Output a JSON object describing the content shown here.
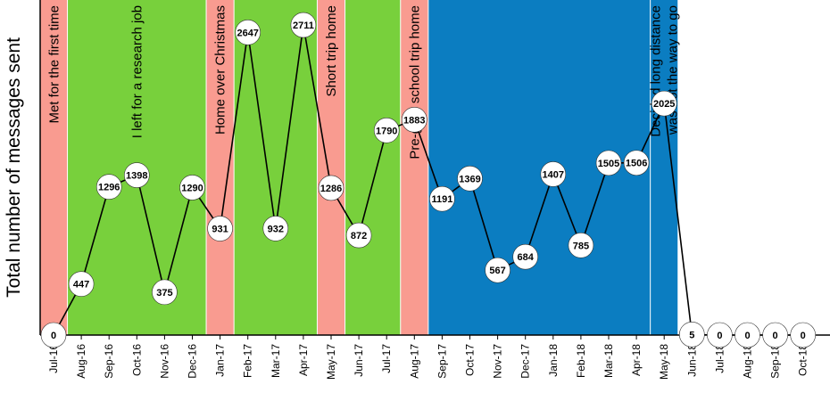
{
  "chart_data": {
    "type": "line",
    "title": "",
    "xlabel": "",
    "ylabel": "Total number of messages sent",
    "ylim": [
      0,
      3000
    ],
    "grid": false,
    "legend": "none",
    "categories": [
      "Jul-16",
      "Aug-16",
      "Sep-16",
      "Oct-16",
      "Nov-16",
      "Dec-16",
      "Jan-17",
      "Feb-17",
      "Mar-17",
      "Apr-17",
      "May-17",
      "Jun-17",
      "Jul-17",
      "Aug-17",
      "Sep-17",
      "Oct-17",
      "Nov-17",
      "Dec-17",
      "Jan-18",
      "Feb-18",
      "Mar-18",
      "Apr-18",
      "May-18",
      "Jun-18",
      "Jul-18",
      "Aug-18",
      "Sep-18",
      "Oct-18"
    ],
    "values": [
      0,
      447,
      1296,
      1398,
      375,
      1290,
      931,
      2647,
      932,
      2711,
      1286,
      872,
      1790,
      1883,
      1191,
      1369,
      567,
      684,
      1407,
      785,
      1505,
      1506,
      2025,
      5,
      0,
      0,
      0,
      0
    ],
    "value_labels": [
      "0",
      "447",
      "1296",
      "1398",
      "375",
      "1290",
      "931",
      "2647",
      "932",
      "2711",
      "1286",
      "872",
      "1790",
      "1883",
      "1191",
      "1369",
      "567",
      "684",
      "1407",
      "785",
      "1505",
      "1506",
      "2025",
      "5",
      "0",
      "0",
      "0",
      "0"
    ],
    "bands": [
      {
        "from": -0.5,
        "to": 0.5,
        "color": "#f99b90",
        "lines": [
          "Met for the first time"
        ]
      },
      {
        "from": 0.5,
        "to": 5.5,
        "color": "#78d03c",
        "lines": [
          "I left for a research job"
        ]
      },
      {
        "from": 5.5,
        "to": 6.5,
        "color": "#f99b90",
        "lines": [
          "Home over Christmas"
        ]
      },
      {
        "from": 6.5,
        "to": 9.5,
        "color": "#78d03c",
        "lines": []
      },
      {
        "from": 9.5,
        "to": 10.5,
        "color": "#f99b90",
        "lines": [
          "Short trip home"
        ]
      },
      {
        "from": 10.5,
        "to": 12.5,
        "color": "#78d03c",
        "lines": []
      },
      {
        "from": 12.5,
        "to": 13.5,
        "color": "#f99b90",
        "lines": [
          "Pre-grad school trip home"
        ]
      },
      {
        "from": 13.5,
        "to": 22.5,
        "color": "#0b7dc1",
        "lines": []
      },
      {
        "from": 21.5,
        "to": 22.5,
        "color": "#0b7dc1",
        "lines": [
          "Decided long distance",
          "was not the way to go"
        ]
      },
      {
        "from": 22.5,
        "to": 27.6,
        "color": "#ffffff",
        "lines": []
      }
    ],
    "colors": {
      "line": "#000000",
      "marker_fill": "#ffffff",
      "axis": "#000000"
    }
  }
}
